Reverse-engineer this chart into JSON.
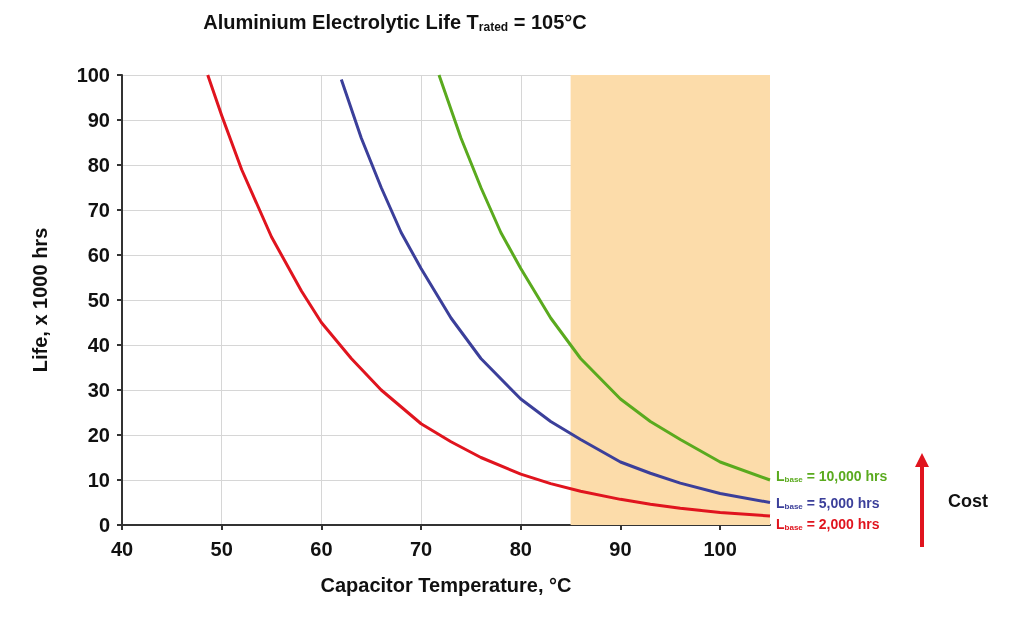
{
  "chart_data": {
    "type": "line",
    "title": "Aluminium Electrolytic Life T$_{rated}$ = 105°C",
    "xlabel": "Capacitor Temperature, °C",
    "ylabel": "Life, x 1000 hrs",
    "xlim": [
      40,
      105
    ],
    "xticks": [
      40,
      50,
      60,
      70,
      80,
      90,
      100
    ],
    "ylim": [
      0,
      100
    ],
    "yticks": [
      0,
      10,
      20,
      30,
      40,
      50,
      60,
      70,
      80,
      90,
      100
    ],
    "grid": true,
    "bands": [
      {
        "axis": "x",
        "from": 85,
        "to": 105,
        "color": "#fcdcaa"
      }
    ],
    "annotations": [
      "Cost"
    ],
    "series": [
      {
        "name": "L$_{base}$ = 10,000 hrs",
        "color": "#5aaa1e",
        "x": [
          71.8,
          74,
          76,
          78,
          80,
          83,
          86,
          90,
          93,
          96,
          100,
          105
        ],
        "values": [
          100,
          86,
          75,
          65,
          57,
          46,
          37,
          28,
          23,
          19,
          14,
          10
        ]
      },
      {
        "name": "L$_{base}$ = 5,000 hrs",
        "color": "#3b3f9a",
        "x": [
          62,
          64,
          66,
          68,
          70,
          73,
          76,
          80,
          83,
          86,
          90,
          93,
          96,
          100,
          105
        ],
        "values": [
          99,
          86,
          75,
          65,
          57,
          46,
          37,
          28,
          23,
          19,
          14,
          11.5,
          9.3,
          7,
          5
        ]
      },
      {
        "name": "L$_{base}$ = 2,000 hrs",
        "color": "#e0141e",
        "x": [
          48.6,
          50,
          52,
          55,
          58,
          60,
          63,
          66,
          70,
          73,
          76,
          80,
          83,
          86,
          90,
          93,
          96,
          100,
          105
        ],
        "values": [
          100,
          91,
          79,
          64,
          52,
          45,
          37,
          30,
          22.5,
          18.5,
          15,
          11.3,
          9.2,
          7.5,
          5.7,
          4.6,
          3.7,
          2.8,
          2
        ]
      }
    ]
  }
}
